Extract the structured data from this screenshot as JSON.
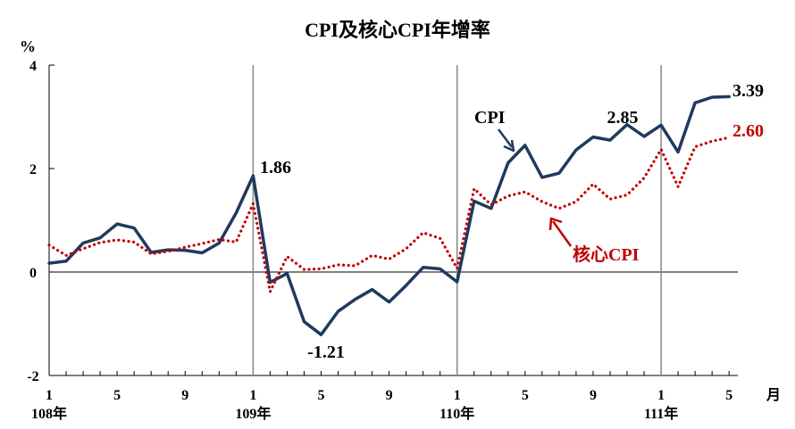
{
  "chart_data": {
    "type": "line",
    "title": "CPI及核心CPI年增率",
    "ylabel": "%",
    "xlabel": "月",
    "ylim": [
      -2,
      4
    ],
    "yticks": [
      "4",
      "2",
      "0",
      "-2"
    ],
    "x_tick_months": [
      "1",
      "5",
      "9",
      "1",
      "5",
      "9",
      "1",
      "5",
      "9",
      "1",
      "5"
    ],
    "x_year_labels": [
      "108年",
      "109年",
      "110年",
      "111年"
    ],
    "grid": false,
    "series": [
      {
        "name": "CPI",
        "color": "#1f3a5f",
        "style": "solid",
        "values": [
          0.17,
          0.21,
          0.56,
          0.66,
          0.93,
          0.85,
          0.38,
          0.43,
          0.42,
          0.37,
          0.56,
          1.14,
          1.86,
          -0.2,
          -0.03,
          -0.96,
          -1.21,
          -0.76,
          -0.53,
          -0.34,
          -0.58,
          -0.26,
          0.09,
          0.06,
          -0.19,
          1.37,
          1.23,
          2.11,
          2.45,
          1.83,
          1.91,
          2.36,
          2.61,
          2.55,
          2.85,
          2.62,
          2.84,
          2.32,
          3.27,
          3.38,
          3.39
        ]
      },
      {
        "name": "核心CPI",
        "color": "#c00000",
        "style": "dotted",
        "values": [
          0.52,
          0.32,
          0.45,
          0.57,
          0.62,
          0.58,
          0.35,
          0.4,
          0.48,
          0.55,
          0.63,
          0.58,
          1.32,
          -0.38,
          0.3,
          0.05,
          0.06,
          0.14,
          0.12,
          0.32,
          0.25,
          0.45,
          0.76,
          0.65,
          0.07,
          1.61,
          1.3,
          1.47,
          1.55,
          1.36,
          1.23,
          1.36,
          1.7,
          1.41,
          1.49,
          1.82,
          2.37,
          1.65,
          2.42,
          2.53,
          2.6
        ]
      }
    ],
    "annotations": [
      {
        "text": "1.86",
        "color": "#000000"
      },
      {
        "text": "-1.21",
        "color": "#000000"
      },
      {
        "text": "2.85",
        "color": "#000000"
      },
      {
        "text": "3.39",
        "color": "#000000"
      },
      {
        "text": "2.60",
        "color": "#c00000"
      }
    ],
    "series_labels": [
      {
        "text": "CPI",
        "color": "#000000"
      },
      {
        "text": "核心CPI",
        "color": "#c00000"
      }
    ]
  }
}
